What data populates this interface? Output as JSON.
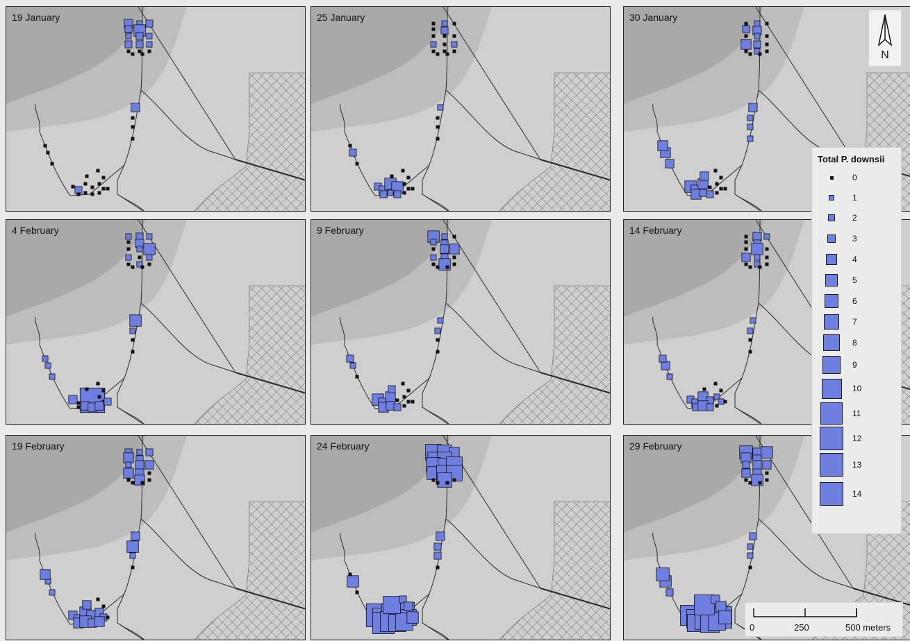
{
  "map": {
    "panels": [
      {
        "label": "19 January",
        "sites": [
          [
            23,
            34,
            2
          ],
          [
            38,
            34,
            0
          ],
          [
            23,
            44,
            1
          ],
          [
            23,
            54,
            0
          ],
          [
            23,
            64,
            1
          ],
          [
            38,
            64,
            1
          ],
          [
            23,
            74,
            1
          ],
          [
            38,
            74,
            1
          ],
          [
            32,
            30,
            1
          ],
          [
            33,
            40,
            1
          ],
          [
            30,
            50,
            1
          ],
          [
            36,
            56,
            1
          ],
          [
            33,
            62,
            1
          ],
          [
            24,
            70,
            0
          ],
          [
            31,
            72,
            0
          ],
          [
            35,
            76,
            0
          ],
          [
            51,
            15,
            1
          ],
          [
            56,
            24,
            0
          ],
          [
            52,
            33,
            0
          ],
          [
            54,
            40,
            0
          ],
          [
            49,
            71,
            0
          ],
          [
            52,
            73,
            0
          ],
          [
            56,
            81,
            0
          ],
          [
            55,
            87,
            0
          ],
          [
            60,
            87,
            0
          ],
          [
            63,
            86,
            0
          ],
          [
            65,
            83,
            0
          ],
          [
            67,
            82,
            0
          ],
          [
            58,
            92,
            0
          ],
          [
            64,
            91,
            0
          ],
          [
            54,
            82,
            1
          ],
          [
            63,
            79,
            0
          ],
          [
            66,
            79,
            0
          ],
          [
            69,
            82,
            1
          ],
          [
            61,
            84,
            0
          ],
          [
            66,
            74,
            0
          ],
          [
            68,
            71,
            0
          ],
          [
            70,
            75,
            0
          ],
          [
            46,
            81,
            1
          ],
          [
            45,
            50,
            0
          ],
          [
            43,
            53,
            1
          ],
          [
            44,
            55,
            0
          ],
          [
            44,
            57,
            0
          ],
          [
            44,
            63,
            0
          ],
          [
            43,
            60,
            1
          ]
        ],
        "special": "p1"
      },
      {
        "label": "25 January",
        "special": "p2"
      },
      {
        "label": "30 January",
        "special": "p3"
      },
      {
        "label": "4 February",
        "special": "p4"
      },
      {
        "label": "9 February",
        "special": "p5"
      },
      {
        "label": "14 February",
        "special": "p6"
      },
      {
        "label": "19 February",
        "special": "p7"
      },
      {
        "label": "24 February",
        "special": "p8"
      },
      {
        "label": "29 February",
        "special": "p9"
      }
    ]
  },
  "legend": {
    "title": "Total P. downsii",
    "items": [
      "0",
      "1",
      "2",
      "3",
      "4",
      "5",
      "6",
      "7",
      "8",
      "9",
      "10",
      "11",
      "12",
      "13",
      "14"
    ]
  },
  "north_arrow": {
    "label": "N"
  },
  "scale_bar": {
    "labels": [
      "0",
      "250",
      "500 meters"
    ]
  },
  "colors": {
    "symbol_fill": "#6f7fe0",
    "symbol_zero": "#111111",
    "land": "#cfcfcf",
    "dark_area": "#a9a9a9",
    "mid_area": "#bdbdbd",
    "road": "#2a2a2a"
  }
}
